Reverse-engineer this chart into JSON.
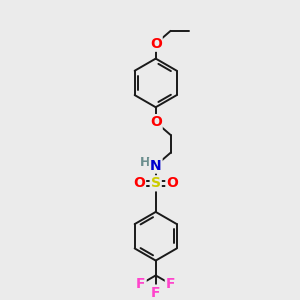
{
  "background_color": "#ebebeb",
  "bond_color": "#1a1a1a",
  "atom_colors": {
    "O": "#ff0000",
    "N": "#0000cd",
    "S": "#cccc00",
    "F": "#ff44cc",
    "H": "#6b8e8e",
    "C": "#1a1a1a"
  },
  "figsize": [
    3.0,
    3.0
  ],
  "dpi": 100
}
